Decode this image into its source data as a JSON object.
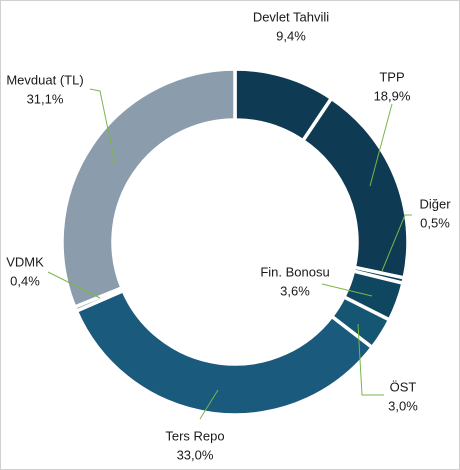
{
  "chart_data": {
    "type": "donut",
    "categories": [
      "Devlet Tahvili",
      "TPP",
      "Diğer",
      "Fin. Bonosu",
      "ÖST",
      "Ters Repo",
      "VDMK",
      "Mevduat (TL)"
    ],
    "values": [
      9.4,
      18.9,
      0.5,
      3.6,
      3.0,
      33.0,
      0.4,
      31.1
    ],
    "value_labels": [
      "9,4%",
      "18,9%",
      "0,5%",
      "3,6%",
      "3,0%",
      "33,0%",
      "0,4%",
      "31,1%"
    ],
    "colors": [
      "#0e3a53",
      "#0e3a53",
      "#0e3a53",
      "#0f4760",
      "#155673",
      "#1a5a7c",
      "#7f92a4",
      "#8b9cad"
    ]
  }
}
